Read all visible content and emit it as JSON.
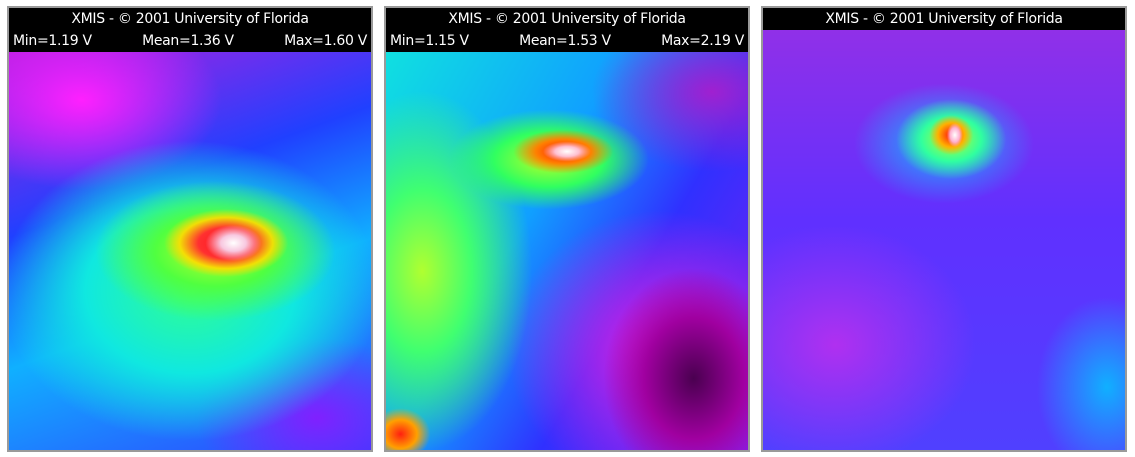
{
  "panels": [
    {
      "title": "XMIS - © 2001 University of Florida",
      "stats": [
        "Min=1.19 V",
        "Mean=1.36 V",
        "Max=1.60 V"
      ]
    },
    {
      "title": "XMIS - © 2001 University of Florida",
      "stats": [
        "Min=1.15 V",
        "Mean=1.53 V",
        "Max=2.19 V"
      ]
    },
    {
      "title": "XMIS - © 2001 University of Florida"
    }
  ]
}
